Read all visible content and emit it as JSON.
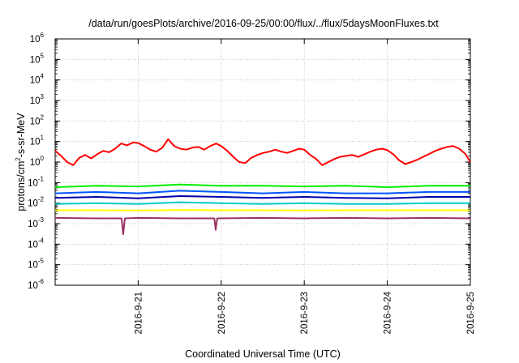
{
  "chart_data": {
    "type": "line",
    "title": "/data/run/goesPlots/archive/2016-09-25/00:00/flux/../flux/5daysMoonFluxes.txt",
    "xlabel": "Coordinated Universal Time (UTC)",
    "ylabel": "protons/cm2-s-sr-MeV",
    "ylabel_parts": {
      "base": "protons/cm",
      "exp": "2",
      "rest": "-s-sr-MeV"
    },
    "yscale": "log",
    "ylim": [
      1e-06,
      1000000.0
    ],
    "xlim": [
      "2016-09-20T00:00",
      "2016-09-25T00:00"
    ],
    "grid": true,
    "x_ticks": [
      "2016-9-21",
      "2016-9-22",
      "2016-9-23",
      "2016-9-24",
      "2016-9-25"
    ],
    "y_ticks": [
      {
        "base": "10",
        "exp": "-6"
      },
      {
        "base": "10",
        "exp": "-5"
      },
      {
        "base": "10",
        "exp": "-4"
      },
      {
        "base": "10",
        "exp": "-3"
      },
      {
        "base": "10",
        "exp": "-2"
      },
      {
        "base": "10",
        "exp": "-1"
      },
      {
        "base": "10",
        "exp": "0"
      },
      {
        "base": "10",
        "exp": "1"
      },
      {
        "base": "10",
        "exp": "2"
      },
      {
        "base": "10",
        "exp": "3"
      },
      {
        "base": "10",
        "exp": "4"
      },
      {
        "base": "10",
        "exp": "5"
      },
      {
        "base": "10",
        "exp": "6"
      }
    ],
    "series": [
      {
        "color": "#ff0000",
        "x": [
          "2016-09-20T00:00",
          "2016-09-20T01:44",
          "2016-09-20T03:28",
          "2016-09-20T05:12",
          "2016-09-20T06:57",
          "2016-09-20T08:40",
          "2016-09-20T10:24",
          "2016-09-20T12:09",
          "2016-09-20T13:52",
          "2016-09-20T15:36",
          "2016-09-20T17:21",
          "2016-09-20T19:04",
          "2016-09-20T20:48",
          "2016-09-20T22:33",
          "2016-09-21T00:00",
          "2016-09-21T01:44",
          "2016-09-21T03:28",
          "2016-09-21T05:12",
          "2016-09-21T06:57",
          "2016-09-21T08:40",
          "2016-09-21T10:24",
          "2016-09-21T12:09",
          "2016-09-21T13:52",
          "2016-09-21T15:36",
          "2016-09-21T17:21",
          "2016-09-21T19:04",
          "2016-09-21T20:48",
          "2016-09-21T22:33",
          "2016-09-22T00:00",
          "2016-09-22T01:44",
          "2016-09-22T03:28",
          "2016-09-22T05:12",
          "2016-09-22T06:57",
          "2016-09-22T08:40",
          "2016-09-22T10:24",
          "2016-09-22T12:09",
          "2016-09-22T13:52",
          "2016-09-22T15:36",
          "2016-09-22T17:21",
          "2016-09-22T19:04",
          "2016-09-22T20:48",
          "2016-09-22T22:33",
          "2016-09-23T00:00",
          "2016-09-23T01:44",
          "2016-09-23T03:28",
          "2016-09-23T05:12",
          "2016-09-23T06:57",
          "2016-09-23T08:40",
          "2016-09-23T10:24",
          "2016-09-23T12:09",
          "2016-09-23T13:52",
          "2016-09-23T15:36",
          "2016-09-23T17:21",
          "2016-09-23T19:04",
          "2016-09-23T20:48",
          "2016-09-23T22:33",
          "2016-09-24T00:00",
          "2016-09-24T01:44",
          "2016-09-24T03:28",
          "2016-09-24T05:12",
          "2016-09-24T06:57",
          "2016-09-24T08:40",
          "2016-09-24T10:24",
          "2016-09-24T12:09",
          "2016-09-24T13:52",
          "2016-09-24T15:36",
          "2016-09-24T17:21",
          "2016-09-24T19:04",
          "2016-09-24T20:48",
          "2016-09-24T22:33",
          "2016-09-25T00:00"
        ],
        "y": [
          3.5,
          2.0,
          1.0,
          0.7,
          1.6,
          2.2,
          1.5,
          2.4,
          3.5,
          3.0,
          4.5,
          8.0,
          6.5,
          9.0,
          8.5,
          6.0,
          4.0,
          3.2,
          5.0,
          13,
          6.0,
          4.5,
          4.0,
          5.0,
          5.5,
          4.0,
          6.0,
          8.0,
          6.0,
          3.5,
          1.8,
          1.0,
          0.9,
          1.6,
          2.2,
          2.8,
          3.2,
          4.0,
          3.2,
          2.8,
          3.5,
          4.5,
          4.0,
          2.2,
          1.4,
          0.7,
          1.0,
          1.4,
          1.8,
          2.0,
          2.2,
          1.8,
          2.4,
          3.2,
          4.0,
          4.5,
          3.8,
          2.4,
          1.2,
          0.8,
          1.0,
          1.3,
          1.8,
          2.5,
          3.5,
          4.5,
          5.5,
          6.0,
          4.5,
          2.5,
          1.0
        ]
      },
      {
        "color": "#00ee00",
        "x": [
          "2016-09-20T00:00",
          "2016-09-20T12:00",
          "2016-09-21T00:00",
          "2016-09-21T12:00",
          "2016-09-22T00:00",
          "2016-09-22T12:00",
          "2016-09-23T00:00",
          "2016-09-23T12:00",
          "2016-09-24T00:00",
          "2016-09-24T12:00",
          "2016-09-25T00:00"
        ],
        "y": [
          0.06,
          0.07,
          0.065,
          0.08,
          0.07,
          0.07,
          0.065,
          0.07,
          0.06,
          0.07,
          0.07
        ]
      },
      {
        "color": "#0055ff",
        "x": [
          "2016-09-20T00:00",
          "2016-09-20T12:00",
          "2016-09-21T00:00",
          "2016-09-21T12:00",
          "2016-09-22T00:00",
          "2016-09-22T12:00",
          "2016-09-23T00:00",
          "2016-09-23T12:00",
          "2016-09-24T00:00",
          "2016-09-24T12:00",
          "2016-09-25T00:00"
        ],
        "y": [
          0.03,
          0.035,
          0.03,
          0.04,
          0.035,
          0.03,
          0.035,
          0.03,
          0.03,
          0.035,
          0.035
        ]
      },
      {
        "color": "#0000aa",
        "x": [
          "2016-09-20T00:00",
          "2016-09-20T12:00",
          "2016-09-21T00:00",
          "2016-09-21T12:00",
          "2016-09-22T00:00",
          "2016-09-22T12:00",
          "2016-09-23T00:00",
          "2016-09-23T12:00",
          "2016-09-24T00:00",
          "2016-09-24T12:00",
          "2016-09-25T00:00"
        ],
        "y": [
          0.018,
          0.02,
          0.017,
          0.022,
          0.02,
          0.018,
          0.02,
          0.018,
          0.017,
          0.02,
          0.02
        ]
      },
      {
        "color": "#00cccc",
        "x": [
          "2016-09-20T00:00",
          "2016-09-20T12:00",
          "2016-09-21T00:00",
          "2016-09-21T12:00",
          "2016-09-22T00:00",
          "2016-09-22T12:00",
          "2016-09-23T00:00",
          "2016-09-23T12:00",
          "2016-09-24T00:00",
          "2016-09-24T12:00",
          "2016-09-25T00:00"
        ],
        "y": [
          0.009,
          0.01,
          0.009,
          0.011,
          0.01,
          0.009,
          0.01,
          0.009,
          0.009,
          0.01,
          0.01
        ]
      },
      {
        "color": "#ffff00",
        "x": [
          "2016-09-20T00:00",
          "2016-09-20T12:00",
          "2016-09-21T00:00",
          "2016-09-21T12:00",
          "2016-09-22T00:00",
          "2016-09-22T12:00",
          "2016-09-23T00:00",
          "2016-09-23T12:00",
          "2016-09-24T00:00",
          "2016-09-24T12:00",
          "2016-09-25T00:00"
        ],
        "y": [
          0.0045,
          0.0045,
          0.0044,
          0.0046,
          0.0045,
          0.0045,
          0.0044,
          0.0045,
          0.0045,
          0.0045,
          0.0045
        ]
      },
      {
        "color": "#993366",
        "x": [
          "2016-09-20T00:00",
          "2016-09-20T12:00",
          "2016-09-20T19:12",
          "2016-09-20T19:40",
          "2016-09-20T20:10",
          "2016-09-21T00:00",
          "2016-09-21T12:00",
          "2016-09-21T22:00",
          "2016-09-21T22:25",
          "2016-09-21T22:50",
          "2016-09-22T12:00",
          "2016-09-23T00:00",
          "2016-09-23T12:00",
          "2016-09-24T00:00",
          "2016-09-24T12:00",
          "2016-09-25T00:00"
        ],
        "y": [
          0.0019,
          0.0018,
          0.0018,
          0.0003,
          0.0018,
          0.0019,
          0.0018,
          0.0018,
          0.0005,
          0.0018,
          0.0019,
          0.0018,
          0.0019,
          0.0018,
          0.0019,
          0.0018
        ]
      }
    ]
  }
}
